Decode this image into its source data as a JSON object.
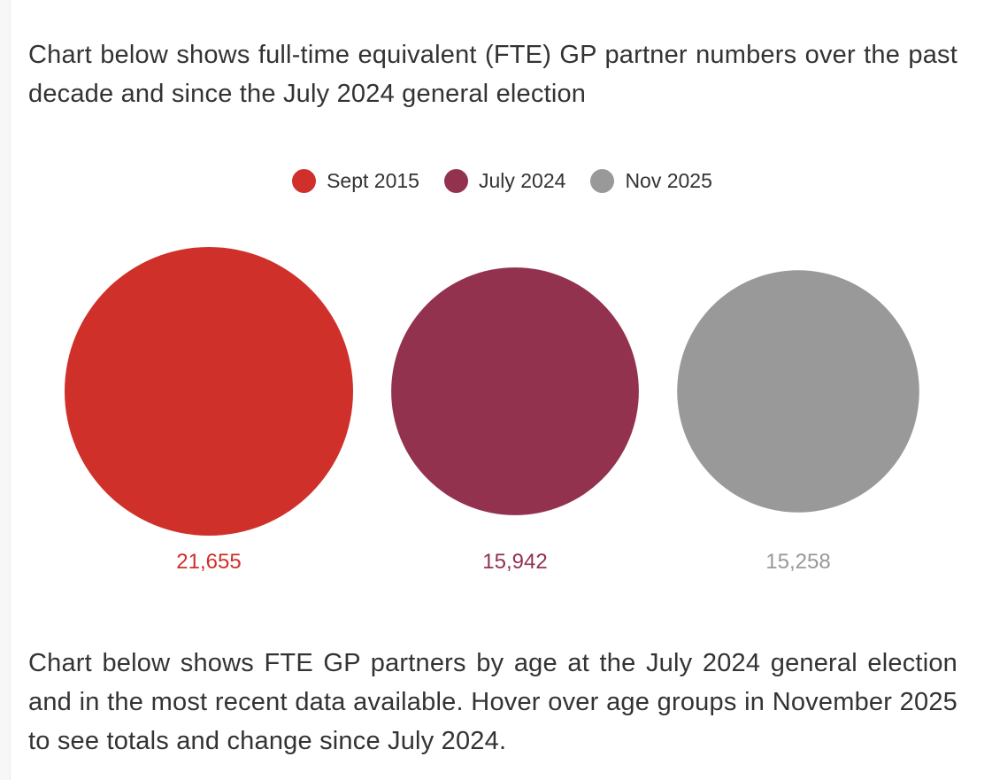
{
  "intro_text": "Chart below shows full-time equivalent (FTE) GP partner numbers over the past decade and since the July 2024 general election",
  "outro_text": "Chart below shows FTE GP partners by age at the July 2024 general election and in the most recent data available. Hover over age groups in November 2025 to see totals and change since July 2024.",
  "colors": {
    "sept_2015": "#d0302a",
    "july_2024": "#93324f",
    "nov_2025": "#999999"
  },
  "chart_data": {
    "type": "bubble",
    "title": "",
    "legend_position": "top-center",
    "series": [
      {
        "name": "Sept 2015",
        "value": 21655,
        "label": "21,655",
        "color": "#d0302a"
      },
      {
        "name": "July 2024",
        "value": 15942,
        "label": "15,942",
        "color": "#93324f"
      },
      {
        "name": "Nov 2025",
        "value": 15258,
        "label": "15,258",
        "color": "#999999"
      }
    ]
  }
}
